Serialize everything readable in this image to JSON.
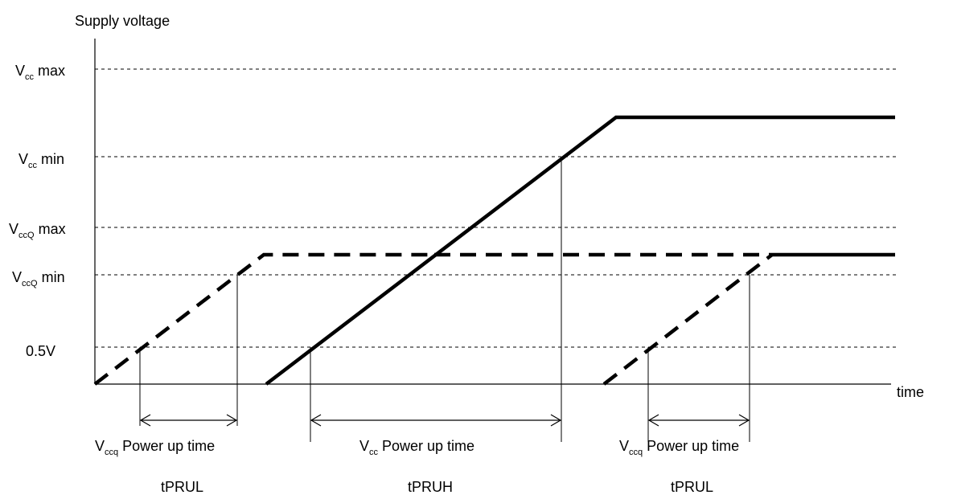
{
  "y_axis_label": "Supply voltage",
  "x_axis_label": "time",
  "levels": [
    {
      "id": "vcc-max",
      "main": "V",
      "sub": "cc",
      "suffix": " max"
    },
    {
      "id": "vcc-min",
      "main": "V",
      "sub": "cc",
      "suffix": " min"
    },
    {
      "id": "vccq-max",
      "main": "V",
      "sub": "ccQ",
      "suffix": " max"
    },
    {
      "id": "vccq-min",
      "main": "V",
      "sub": "ccQ",
      "suffix": " min"
    },
    {
      "id": "half-volt",
      "main": "0.5V",
      "sub": "",
      "suffix": ""
    }
  ],
  "intervals": [
    {
      "main": "V",
      "sub": "ccq",
      "suffix": " Power up time",
      "param": "tPRUL"
    },
    {
      "main": "V",
      "sub": "cc",
      "suffix": " Power up time",
      "param": "tPRUH"
    },
    {
      "main": "V",
      "sub": "ccq",
      "suffix": " Power up time",
      "param": "tPRUL"
    }
  ],
  "colors": {
    "line": "#000000",
    "grid": "#000000",
    "background": "#ffffff"
  }
}
